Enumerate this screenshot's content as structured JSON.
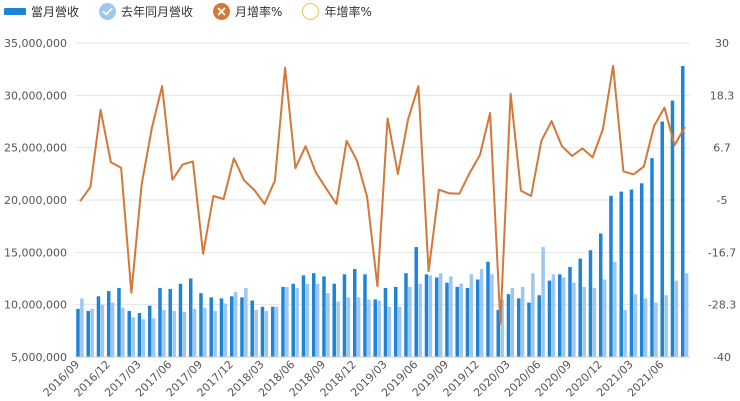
{
  "legend": {
    "items": [
      {
        "label": "當月營收",
        "color": "#1f83d6"
      },
      {
        "label": "去年同月營收",
        "color": "#9dc7ef"
      },
      {
        "label": "月增率%",
        "color": "#d4773a"
      },
      {
        "label": "年增率%",
        "color": "#f0c24e"
      }
    ]
  },
  "chart_data": {
    "type": "bar",
    "title": "",
    "left_axis": {
      "min": 5000000,
      "max": 35000000,
      "ticks": [
        "35,000,000",
        "30,000,000",
        "25,000,000",
        "20,000,000",
        "15,000,000",
        "10,000,000",
        "5,000,000"
      ]
    },
    "right_axis": {
      "min": -40,
      "max": 30,
      "ticks": [
        "30",
        "18.3",
        "6.7",
        "-5",
        "-16.7",
        "-28.3",
        "-40"
      ]
    },
    "x_tick_labels": [
      "2016/09",
      "2016/12",
      "2017/03",
      "2017/06",
      "2017/09",
      "2017/12",
      "2018/03",
      "2018/06",
      "2018/09",
      "2018/12",
      "2019/03",
      "2019/06",
      "2019/09",
      "2019/12",
      "2020/03",
      "2020/06",
      "2020/09",
      "2020/12",
      "2021/03",
      "2021/06"
    ],
    "categories": [
      "2016/09",
      "2016/10",
      "2016/11",
      "2016/12",
      "2017/01",
      "2017/02",
      "2017/03",
      "2017/04",
      "2017/05",
      "2017/06",
      "2017/07",
      "2017/08",
      "2017/09",
      "2017/10",
      "2017/11",
      "2017/12",
      "2018/01",
      "2018/02",
      "2018/03",
      "2018/04",
      "2018/05",
      "2018/06",
      "2018/07",
      "2018/08",
      "2018/09",
      "2018/10",
      "2018/11",
      "2018/12",
      "2019/01",
      "2019/02",
      "2019/03",
      "2019/04",
      "2019/05",
      "2019/06",
      "2019/07",
      "2019/08",
      "2019/09",
      "2019/10",
      "2019/11",
      "2019/12",
      "2020/01",
      "2020/02",
      "2020/03",
      "2020/04",
      "2020/05",
      "2020/06",
      "2020/07",
      "2020/08",
      "2020/09",
      "2020/10",
      "2020/11",
      "2020/12",
      "2021/01",
      "2021/02",
      "2021/03",
      "2021/04",
      "2021/05",
      "2021/06",
      "2021/07",
      "2021/08"
    ],
    "series": [
      {
        "name": "當月營收",
        "type": "bar",
        "axis": "left",
        "values": [
          9600000,
          9400000,
          10800000,
          11300000,
          11600000,
          9400000,
          9200000,
          9900000,
          11600000,
          11500000,
          12000000,
          12500000,
          11100000,
          10700000,
          10600000,
          10800000,
          10700000,
          10400000,
          9800000,
          9800000,
          11700000,
          12000000,
          12800000,
          13000000,
          12700000,
          12000000,
          12900000,
          13400000,
          12900000,
          10500000,
          11600000,
          11700000,
          13000000,
          15500000,
          12900000,
          12600000,
          12100000,
          11700000,
          11600000,
          12400000,
          14100000,
          9500000,
          11000000,
          10600000,
          10200000,
          10900000,
          12300000,
          12900000,
          13600000,
          14400000,
          15200000,
          16800000,
          20400000,
          20800000,
          21000000,
          21600000,
          24000000,
          27500000,
          29500000,
          32800000
        ]
      },
      {
        "name": "去年同月營收",
        "type": "bar",
        "axis": "left",
        "values": [
          10600000,
          9600000,
          10000000,
          10200000,
          9700000,
          8800000,
          8600000,
          8700000,
          9500000,
          9400000,
          9300000,
          9600000,
          9700000,
          9400000,
          10100000,
          11200000,
          11600000,
          9500000,
          9400000,
          9800000,
          11700000,
          11600000,
          12000000,
          12000000,
          11100000,
          10300000,
          10700000,
          10700000,
          10500000,
          10400000,
          9800000,
          9800000,
          11700000,
          12000000,
          12800000,
          13000000,
          12700000,
          12000000,
          12900000,
          13400000,
          12900000,
          10500000,
          11600000,
          11700000,
          13000000,
          15500000,
          12900000,
          12600000,
          12100000,
          11700000,
          11600000,
          12400000,
          14100000,
          9500000,
          11000000,
          10600000,
          10200000,
          10900000,
          12300000,
          13000000
        ]
      },
      {
        "name": "月增率%",
        "type": "line",
        "axis": "right",
        "values": [
          -5.3,
          -2.1,
          15.1,
          3.4,
          2.2,
          -25.7,
          -1.6,
          11.1,
          20.4,
          -0.5,
          2.9,
          3.6,
          -17,
          -4.1,
          -4.8,
          4.3,
          -0.6,
          -2.8,
          -5.9,
          -0.7,
          24.5,
          2.1,
          7,
          1.1,
          -2.4,
          -5.9,
          8.2,
          3.8,
          -4.3,
          -24.2,
          13.2,
          0.8,
          13,
          20.4,
          -20.9,
          -2.7,
          -3.5,
          -3.6,
          1,
          5,
          14.4,
          -32.6,
          18.7,
          -2.9,
          -4.1,
          8.2,
          12.6,
          7,
          4.8,
          6.5,
          4.5,
          10.8,
          24.9,
          1.4,
          0.7,
          2.5,
          11.5,
          15.6,
          7.2,
          11.3
        ]
      }
    ]
  }
}
